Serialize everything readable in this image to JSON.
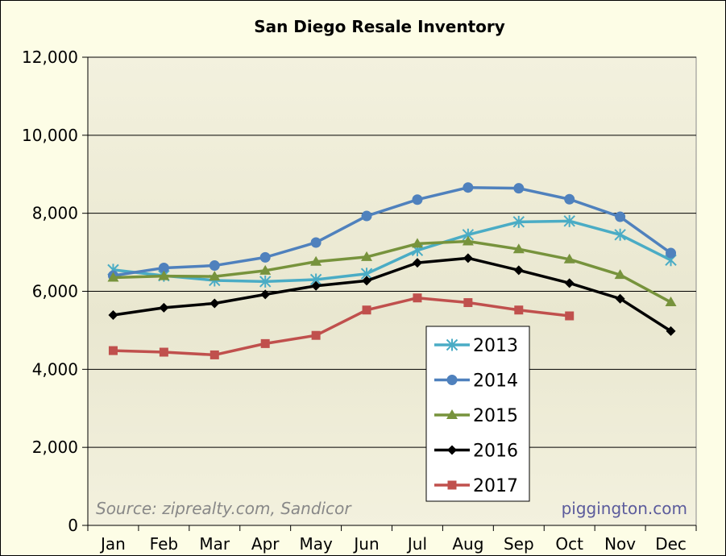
{
  "chart_data": {
    "type": "line",
    "title": "San Diego Resale Inventory",
    "xlabel": "",
    "ylabel": "",
    "categories": [
      "Jan",
      "Feb",
      "Mar",
      "Apr",
      "May",
      "Jun",
      "Jul",
      "Aug",
      "Sep",
      "Oct",
      "Nov",
      "Dec"
    ],
    "ylim": [
      0,
      12000
    ],
    "yticks": [
      0,
      2000,
      4000,
      6000,
      8000,
      10000,
      12000
    ],
    "ytick_labels": [
      "0",
      "2,000",
      "4,000",
      "6,000",
      "8,000",
      "10,000",
      "12,000"
    ],
    "grid": true,
    "legend_position": "bottom-center",
    "series": [
      {
        "name": "2013",
        "color": "#4aacc5",
        "marker": "asterisk",
        "values": [
          6550,
          6400,
          6280,
          6250,
          6300,
          6450,
          7050,
          7450,
          7780,
          7800,
          7450,
          6800
        ]
      },
      {
        "name": "2014",
        "color": "#4f81bd",
        "marker": "circle",
        "values": [
          6400,
          6600,
          6660,
          6870,
          7250,
          7930,
          8350,
          8660,
          8640,
          8360,
          7910,
          6980
        ]
      },
      {
        "name": "2015",
        "color": "#77933c",
        "marker": "triangle",
        "values": [
          6350,
          6390,
          6380,
          6530,
          6760,
          6880,
          7220,
          7280,
          7080,
          6820,
          6420,
          5720
        ]
      },
      {
        "name": "2016",
        "color": "#000000",
        "marker": "diamond",
        "values": [
          5390,
          5580,
          5690,
          5920,
          6140,
          6270,
          6730,
          6850,
          6540,
          6210,
          5810,
          4980
        ]
      },
      {
        "name": "2017",
        "color": "#c0504d",
        "marker": "square",
        "values": [
          4480,
          4440,
          4370,
          4660,
          4870,
          5520,
          5830,
          5710,
          5520,
          5370,
          null,
          null
        ]
      }
    ],
    "annotations": {
      "source": "Source: ziprealty.com, Sandicor",
      "credit": "piggington.com"
    },
    "colors": {
      "background": "#fdfde6",
      "plot_area": "#efeed9",
      "gridline": "#000000",
      "legend_background": "#ffffff"
    }
  }
}
